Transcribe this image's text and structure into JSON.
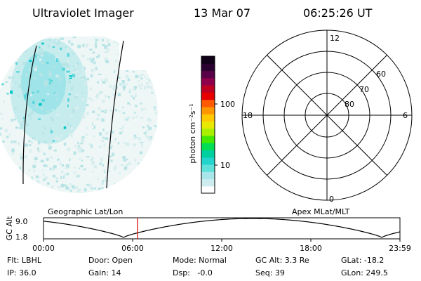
{
  "header": {
    "instrument": "Ultraviolet Imager",
    "date": "13 Mar 07",
    "time": "06:25:26 UT"
  },
  "colorbar": {
    "label": "photon cm⁻²s⁻¹",
    "ticks": [
      "100",
      "10"
    ],
    "colors": [
      "#ffffff",
      "#ccecf0",
      "#a8e6ea",
      "#5fe0d8",
      "#22d4cc",
      "#00d0a0",
      "#00dd55",
      "#44e800",
      "#a8f000",
      "#e8e800",
      "#ffc800",
      "#ff9600",
      "#ff5a00",
      "#e60000",
      "#c00020",
      "#90004a",
      "#5a0048",
      "#2a0030",
      "#100018"
    ]
  },
  "polar_grid": {
    "mlt_labels": {
      "top": "12",
      "left": "18",
      "right": "6",
      "bottom": "0"
    },
    "lat_labels": [
      "60",
      "70",
      "80"
    ]
  },
  "altitude_plot": {
    "axis_title": "GC Alt",
    "y_ticks": [
      "9.0",
      "1.8"
    ],
    "x_ticks": [
      "00:00",
      "06:00",
      "12:00",
      "18:00",
      "23:59"
    ],
    "left_label": "Geographic Lat/Lon",
    "right_label": "Apex MLat/MLT",
    "marker_color": "#d40000"
  },
  "status": {
    "flt": "Flt: LBHL",
    "door": "Door: Open",
    "mode": "Mode: Normal",
    "gc_alt": "GC Alt: 3.3 Re",
    "glat": "GLat: -18.2",
    "ip": "IP: 36.0",
    "gain": "Gain: 14",
    "dsp": "Dsp:   -0.0",
    "seq": "Seq: 39",
    "glon": "GLon: 249.5"
  }
}
